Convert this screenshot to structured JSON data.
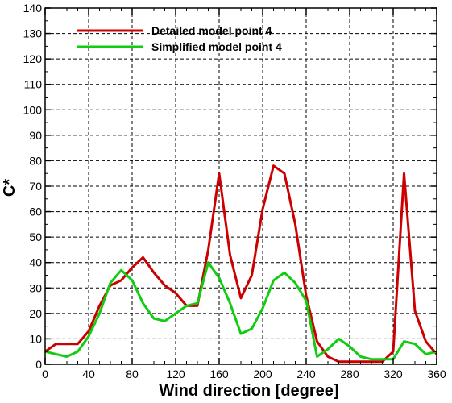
{
  "chart_data": {
    "type": "line",
    "xlabel": "Wind direction [degree]",
    "ylabel": "C*",
    "xlim": [
      0,
      360
    ],
    "ylim": [
      0,
      140
    ],
    "xticks": [
      0,
      40,
      80,
      120,
      160,
      200,
      240,
      280,
      320,
      360
    ],
    "xtick_step_minor": 10,
    "yticks": [
      0,
      10,
      20,
      30,
      40,
      50,
      60,
      70,
      80,
      90,
      100,
      110,
      120,
      130,
      140
    ],
    "grid": true,
    "grid_style": "dashed",
    "legend_position": "top-left",
    "x": [
      0,
      10,
      20,
      30,
      40,
      50,
      60,
      70,
      80,
      90,
      100,
      110,
      120,
      130,
      140,
      150,
      160,
      170,
      180,
      190,
      200,
      210,
      220,
      230,
      240,
      250,
      260,
      270,
      280,
      290,
      300,
      310,
      320,
      330,
      340,
      350,
      360
    ],
    "series": [
      {
        "name": "Detailed model point 4",
        "color": "#cc0000",
        "values": [
          5,
          8,
          8,
          8,
          13,
          23,
          31,
          33,
          38,
          42,
          36,
          31,
          28,
          23,
          23,
          45,
          75,
          43,
          26,
          35,
          61,
          78,
          75,
          55,
          27,
          9,
          3,
          1,
          1,
          1,
          1,
          1,
          5,
          75,
          21,
          9,
          4
        ]
      },
      {
        "name": "Simplified model point 4",
        "color": "#11cc11",
        "values": [
          5,
          4,
          3,
          5,
          11,
          20,
          32,
          37,
          33,
          24,
          18,
          17,
          20,
          23,
          24,
          40,
          34,
          24,
          12,
          14,
          22,
          33,
          36,
          32,
          25,
          3,
          6,
          10,
          7,
          3,
          2,
          2,
          2,
          9,
          8,
          4,
          5
        ]
      }
    ]
  }
}
